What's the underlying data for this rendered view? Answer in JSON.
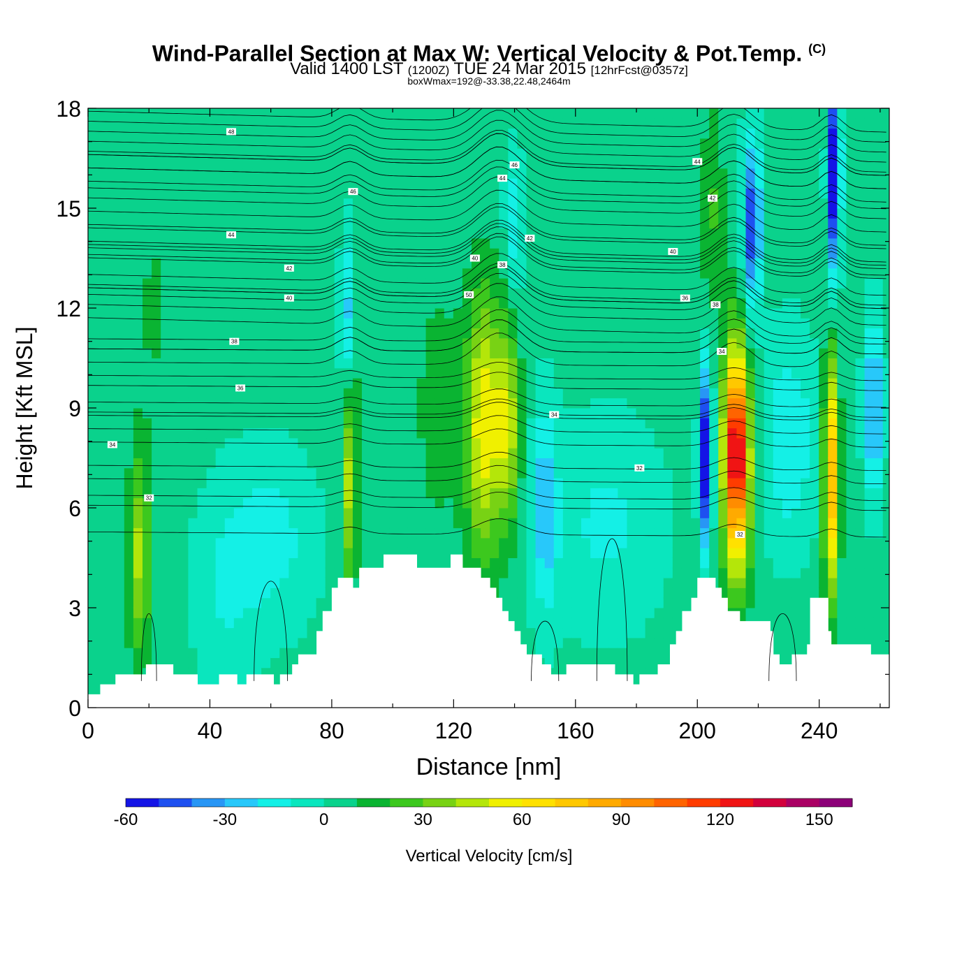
{
  "header": {
    "title": "Wind-Parallel Section at Max W: Vertical Velocity & Pot.Temp.",
    "copyright": "(C)",
    "valid_prefix": "Valid 1400 LST",
    "valid_utc": "(1200Z)",
    "valid_date": "TUE 24 Mar 2015",
    "forecast": "[12hrFcst@0357z]",
    "boxwmax": "boxWmax=192@-33.38,22.48,2464m"
  },
  "colorbar": {
    "label": "Vertical Velocity [cm/s]",
    "ticks": [
      "-60",
      "-30",
      "0",
      "30",
      "60",
      "90",
      "120",
      "150"
    ],
    "bounds": [
      -60,
      160
    ],
    "step": 10,
    "colors": [
      "#1414e6",
      "#1e50f0",
      "#2896f5",
      "#28c8fa",
      "#14f0e6",
      "#0ae6be",
      "#0ad28c",
      "#0ab432",
      "#3cc81e",
      "#78d214",
      "#b4e60a",
      "#f0f000",
      "#ffe100",
      "#ffc800",
      "#ffaa00",
      "#ff8c00",
      "#ff6400",
      "#ff3c00",
      "#f01414",
      "#d2003c",
      "#aa0064",
      "#8c0078"
    ]
  },
  "chart_data": {
    "type": "heatmap",
    "title": "Wind-Parallel Section at Max W: Vertical Velocity & Pot.Temp.",
    "xlabel": "Distance [nm]",
    "ylabel": "Height [Kft MSL]",
    "xlim": [
      0,
      263
    ],
    "ylim": [
      0,
      18
    ],
    "xticks": [
      "0",
      "40",
      "80",
      "120",
      "160",
      "200",
      "240"
    ],
    "yticks": [
      "0",
      "3",
      "6",
      "9",
      "12",
      "15",
      "18"
    ],
    "background_w": 3,
    "w_cells": [
      {
        "x": 17,
        "y": 4.5,
        "w": 40,
        "sx": 3.5,
        "sy": 3
      },
      {
        "x": 86,
        "y": 7,
        "w": 42,
        "sx": 2.5,
        "sy": 3.5
      },
      {
        "x": 130,
        "y": 8.5,
        "w": 55,
        "sx": 6,
        "sy": 4
      },
      {
        "x": 138,
        "y": 8.5,
        "w": 40,
        "sx": 4,
        "sy": 3
      },
      {
        "x": 213,
        "y": 7.5,
        "w": 110,
        "sx": 4.5,
        "sy": 3.5
      },
      {
        "x": 213,
        "y": 7.8,
        "w": 45,
        "sx": 2,
        "sy": 1.8
      },
      {
        "x": 244,
        "y": 7,
        "w": 80,
        "sx": 2.5,
        "sy": 3.5
      },
      {
        "x": 115,
        "y": 9,
        "w": 12,
        "sx": 8,
        "sy": 4
      },
      {
        "x": 60,
        "y": 5,
        "w": -18,
        "sx": 14,
        "sy": 2.5
      },
      {
        "x": 45,
        "y": 3.5,
        "w": -12,
        "sx": 10,
        "sy": 3
      },
      {
        "x": 170,
        "y": 5.5,
        "w": -15,
        "sx": 18,
        "sy": 3
      },
      {
        "x": 150,
        "y": 6,
        "w": -30,
        "sx": 4,
        "sy": 3
      },
      {
        "x": 85,
        "y": 11.5,
        "w": -32,
        "sx": 2,
        "sy": 2.5
      },
      {
        "x": 140,
        "y": 14.5,
        "w": -22,
        "sx": 3,
        "sy": 2
      },
      {
        "x": 203,
        "y": 7.5,
        "w": -72,
        "sx": 2,
        "sy": 2.6
      },
      {
        "x": 218,
        "y": 14.5,
        "w": -55,
        "sx": 3,
        "sy": 2.5
      },
      {
        "x": 245,
        "y": 16,
        "w": -70,
        "sx": 2,
        "sy": 3
      },
      {
        "x": 230,
        "y": 8,
        "w": -22,
        "sx": 9,
        "sy": 3
      },
      {
        "x": 258,
        "y": 9,
        "w": -40,
        "sx": 3,
        "sy": 2.5
      },
      {
        "x": 22,
        "y": 12,
        "w": 8,
        "sx": 8,
        "sy": 4
      },
      {
        "x": 205,
        "y": 15,
        "w": 18,
        "sx": 4,
        "sy": 3
      }
    ],
    "terrain": [
      [
        0,
        0.4
      ],
      [
        4,
        0.4
      ],
      [
        4,
        0.7
      ],
      [
        9,
        0.7
      ],
      [
        9,
        1
      ],
      [
        19,
        1
      ],
      [
        19,
        1.3
      ],
      [
        28,
        1.3
      ],
      [
        28,
        1
      ],
      [
        36,
        1
      ],
      [
        36,
        0.7
      ],
      [
        43,
        0.7
      ],
      [
        43,
        1
      ],
      [
        49,
        1
      ],
      [
        49,
        0.7
      ],
      [
        52,
        0.7
      ],
      [
        52,
        1
      ],
      [
        61,
        1
      ],
      [
        61,
        0.7
      ],
      [
        63,
        0.7
      ],
      [
        63,
        1
      ],
      [
        67,
        1
      ],
      [
        67,
        1.3
      ],
      [
        69,
        1.3
      ],
      [
        69,
        1.6
      ],
      [
        75,
        1.6
      ],
      [
        75,
        2.3
      ],
      [
        77,
        2.3
      ],
      [
        77,
        2.9
      ],
      [
        80,
        2.9
      ],
      [
        80,
        3.6
      ],
      [
        82,
        3.6
      ],
      [
        82,
        3.9
      ],
      [
        87,
        3.9
      ],
      [
        87,
        3.6
      ],
      [
        89,
        3.6
      ],
      [
        89,
        4.2
      ],
      [
        97,
        4.2
      ],
      [
        97,
        4.6
      ],
      [
        108,
        4.6
      ],
      [
        108,
        4.2
      ],
      [
        119,
        4.2
      ],
      [
        119,
        4.6
      ],
      [
        123,
        4.6
      ],
      [
        123,
        4.2
      ],
      [
        129,
        4.2
      ],
      [
        129,
        3.9
      ],
      [
        132,
        3.9
      ],
      [
        132,
        3.6
      ],
      [
        134,
        3.6
      ],
      [
        134,
        3.3
      ],
      [
        136,
        3.3
      ],
      [
        136,
        2.9
      ],
      [
        138,
        2.9
      ],
      [
        138,
        2.6
      ],
      [
        140,
        2.6
      ],
      [
        140,
        2.3
      ],
      [
        142,
        2.3
      ],
      [
        142,
        1.9
      ],
      [
        144,
        1.9
      ],
      [
        144,
        1.6
      ],
      [
        149,
        1.6
      ],
      [
        149,
        1.3
      ],
      [
        152,
        1.3
      ],
      [
        152,
        1
      ],
      [
        157,
        1
      ],
      [
        157,
        1.3
      ],
      [
        173,
        1.3
      ],
      [
        173,
        1
      ],
      [
        179,
        1
      ],
      [
        179,
        0.7
      ],
      [
        181,
        0.7
      ],
      [
        181,
        1
      ],
      [
        187,
        1
      ],
      [
        187,
        1.3
      ],
      [
        191,
        1.3
      ],
      [
        191,
        1.9
      ],
      [
        193,
        1.9
      ],
      [
        193,
        2.3
      ],
      [
        195,
        2.3
      ],
      [
        195,
        2.9
      ],
      [
        198,
        2.9
      ],
      [
        198,
        3.3
      ],
      [
        200,
        3.3
      ],
      [
        200,
        3.9
      ],
      [
        206,
        3.9
      ],
      [
        206,
        3.6
      ],
      [
        208,
        3.6
      ],
      [
        208,
        3.3
      ],
      [
        210,
        3.3
      ],
      [
        210,
        2.9
      ],
      [
        214,
        2.9
      ],
      [
        214,
        2.6
      ],
      [
        224,
        2.6
      ],
      [
        224,
        2.3
      ],
      [
        225,
        2.3
      ],
      [
        225,
        1.6
      ],
      [
        227,
        1.6
      ],
      [
        227,
        1.3
      ],
      [
        231,
        1.3
      ],
      [
        231,
        1.6
      ],
      [
        236,
        1.6
      ],
      [
        236,
        1.9
      ],
      [
        237,
        1.9
      ],
      [
        237,
        3.3
      ],
      [
        243,
        3.3
      ],
      [
        243,
        2.3
      ],
      [
        244,
        2.3
      ],
      [
        244,
        1.9
      ],
      [
        257,
        1.9
      ],
      [
        257,
        1.6
      ],
      [
        263,
        1.6
      ]
    ],
    "isentropes": [
      {
        "label": "32",
        "y": 6.3,
        "label_x": 20
      },
      {
        "label": "34",
        "y": 7.9,
        "label_x": 8
      },
      {
        "label": "36",
        "y": 9.6,
        "label_x": 50
      },
      {
        "label": "38",
        "y": 11,
        "label_x": 48
      },
      {
        "label": "40",
        "y": 12.3,
        "label_x": 66
      },
      {
        "label": "42",
        "y": 13.2,
        "label_x": 66
      },
      {
        "label": "44",
        "y": 14.2,
        "label_x": 47
      },
      {
        "label": "46",
        "y": 15.5,
        "label_x": 87
      },
      {
        "label": "48",
        "y": 17.3,
        "label_x": 47
      },
      {
        "label": "50",
        "y": 12.4,
        "label_x": 125
      },
      {
        "label": "40",
        "y": 13.5,
        "label_x": 127
      },
      {
        "label": "38",
        "y": 13.3,
        "label_x": 136
      },
      {
        "label": "44",
        "y": 15.9,
        "label_x": 136
      },
      {
        "label": "42",
        "y": 14.1,
        "label_x": 145
      },
      {
        "label": "46",
        "y": 16.3,
        "label_x": 140
      },
      {
        "label": "34",
        "y": 8.8,
        "label_x": 153
      },
      {
        "label": "32",
        "y": 7.2,
        "label_x": 181
      },
      {
        "label": "40",
        "y": 13.7,
        "label_x": 192
      },
      {
        "label": "36",
        "y": 12.3,
        "label_x": 196
      },
      {
        "label": "44",
        "y": 16.4,
        "label_x": 200
      },
      {
        "label": "42",
        "y": 15.3,
        "label_x": 205
      },
      {
        "label": "38",
        "y": 12.1,
        "label_x": 206
      },
      {
        "label": "34",
        "y": 10.7,
        "label_x": 208
      },
      {
        "label": "32",
        "y": 5.2,
        "label_x": 214
      }
    ],
    "extra_contour_levels": [
      6.0,
      6.8,
      8.3,
      8.7,
      9.1,
      9.9,
      10.3,
      10.7,
      11.4,
      11.8,
      12.7,
      13.6,
      14.6,
      15.0,
      15.9,
      16.3,
      16.7,
      17.0,
      17.6
    ]
  }
}
